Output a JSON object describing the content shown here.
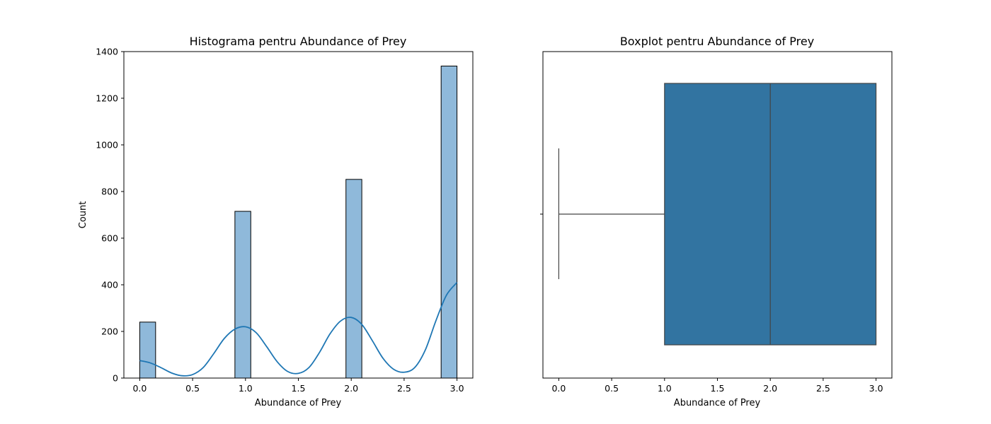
{
  "chart_data": [
    {
      "type": "bar",
      "title": "Histograma pentru Abundance of Prey",
      "xlabel": "Abundance of Prey",
      "ylabel": "Count",
      "xlim": [
        -0.15,
        3.15
      ],
      "ylim": [
        0,
        1400
      ],
      "xticks": [
        "0.0",
        "0.5",
        "1.0",
        "1.5",
        "2.0",
        "2.5",
        "3.0"
      ],
      "yticks": [
        "0",
        "200",
        "400",
        "600",
        "800",
        "1000",
        "1200",
        "1400"
      ],
      "bar_width": 0.15,
      "bins": [
        {
          "x0": 0.0,
          "x1": 0.15,
          "count": 240
        },
        {
          "x0": 0.9,
          "x1": 1.05,
          "count": 715
        },
        {
          "x0": 1.95,
          "x1": 2.1,
          "count": 852
        },
        {
          "x0": 2.85,
          "x1": 3.0,
          "count": 1338
        }
      ],
      "kde": {
        "x": [
          0.0,
          0.1,
          0.2,
          0.3,
          0.4,
          0.5,
          0.6,
          0.7,
          0.8,
          0.9,
          1.0,
          1.1,
          1.2,
          1.3,
          1.4,
          1.5,
          1.6,
          1.7,
          1.8,
          1.9,
          2.0,
          2.1,
          2.2,
          2.3,
          2.4,
          2.5,
          2.6,
          2.7,
          2.8,
          2.9,
          3.0
        ],
        "y": [
          75,
          65,
          45,
          22,
          10,
          15,
          45,
          105,
          170,
          210,
          220,
          195,
          135,
          70,
          28,
          20,
          45,
          110,
          190,
          245,
          260,
          230,
          160,
          85,
          38,
          25,
          45,
          120,
          245,
          355,
          410
        ]
      },
      "bar_color": "#8fb9da",
      "line_color": "#1f77b4"
    },
    {
      "type": "boxplot",
      "title": "Boxplot pentru Abundance of Prey",
      "xlabel": "Abundance of Prey",
      "xlim": [
        -0.15,
        3.15
      ],
      "xticks": [
        "0.0",
        "0.5",
        "1.0",
        "1.5",
        "2.0",
        "2.5",
        "3.0"
      ],
      "stats": {
        "whisker_low": 0.0,
        "q1": 1.0,
        "median": 2.0,
        "q3": 3.0,
        "whisker_high": 3.0
      },
      "box_color": "#3274a1"
    }
  ]
}
